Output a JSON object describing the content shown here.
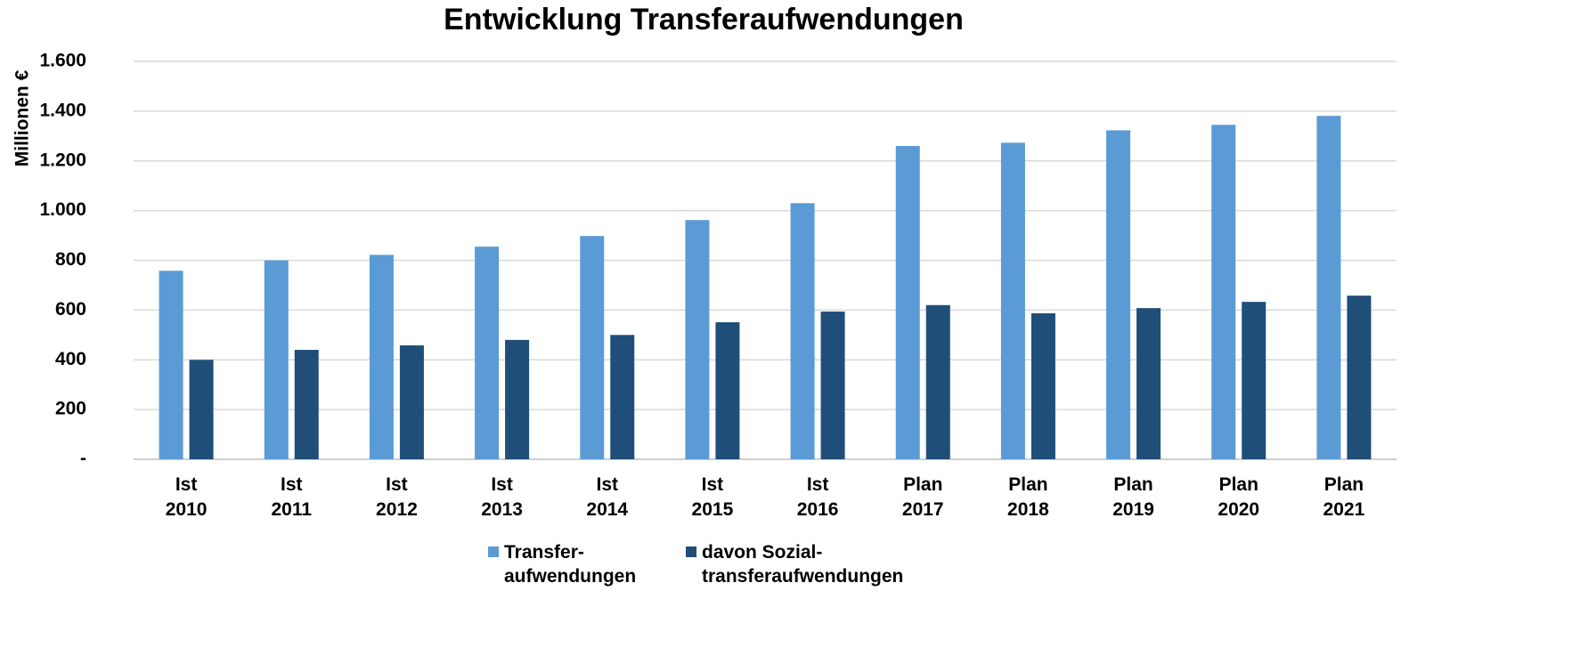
{
  "chart_data": {
    "type": "bar",
    "title": "Entwicklung Transferaufwendungen",
    "y_label": "Millionen €",
    "categories": [
      "Ist\n2010",
      "Ist\n2011",
      "Ist\n2012",
      "Ist\n2013",
      "Ist\n2014",
      "Ist\n2015",
      "Ist\n2016",
      "Plan\n2017",
      "Plan\n2018",
      "Plan\n2019",
      "Plan\n2020",
      "Plan\n2021"
    ],
    "series": [
      {
        "name": "Transfer-\naufwendungen",
        "color": "#5b9bd5",
        "values": [
          758,
          800,
          822,
          855,
          898,
          962,
          1030,
          1260,
          1273,
          1323,
          1345,
          1381
        ]
      },
      {
        "name": "davon Sozial-\ntransferaufwendungen",
        "color": "#1f4e79",
        "values": [
          400,
          440,
          458,
          480,
          500,
          551,
          594,
          620,
          587,
          608,
          633,
          658
        ]
      }
    ],
    "ylim": [
      0,
      1600
    ],
    "yticks": [
      {
        "value": 0,
        "label": "-"
      },
      200,
      400,
      600,
      800,
      {
        "value": 1000,
        "label": "1.000"
      },
      {
        "value": 1200,
        "label": "1.200"
      },
      {
        "value": 1400,
        "label": "1.400"
      },
      {
        "value": 1600,
        "label": "1.600"
      }
    ],
    "grid": true,
    "legend": "bottom"
  }
}
